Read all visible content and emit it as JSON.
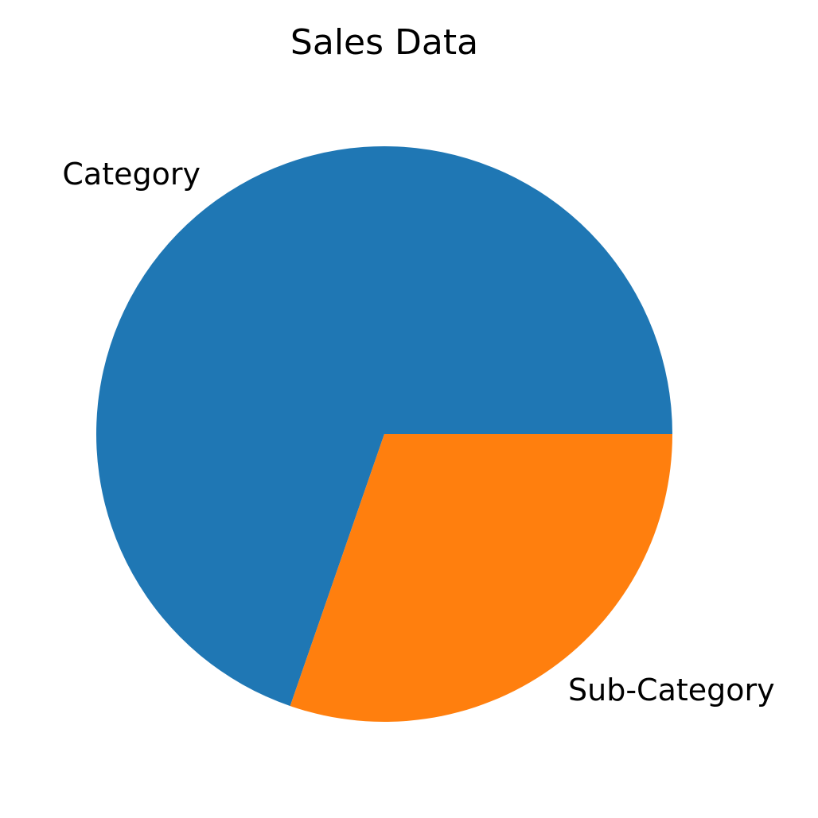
{
  "chart_data": {
    "type": "pie",
    "title": "Sales Data",
    "start_angle_deg": 0,
    "direction": "counterclockwise",
    "slices": [
      {
        "label": "Category",
        "value": 69.7,
        "color": "#1f77b4"
      },
      {
        "label": "Sub-Category",
        "value": 30.3,
        "color": "#ff7f0e"
      }
    ]
  }
}
